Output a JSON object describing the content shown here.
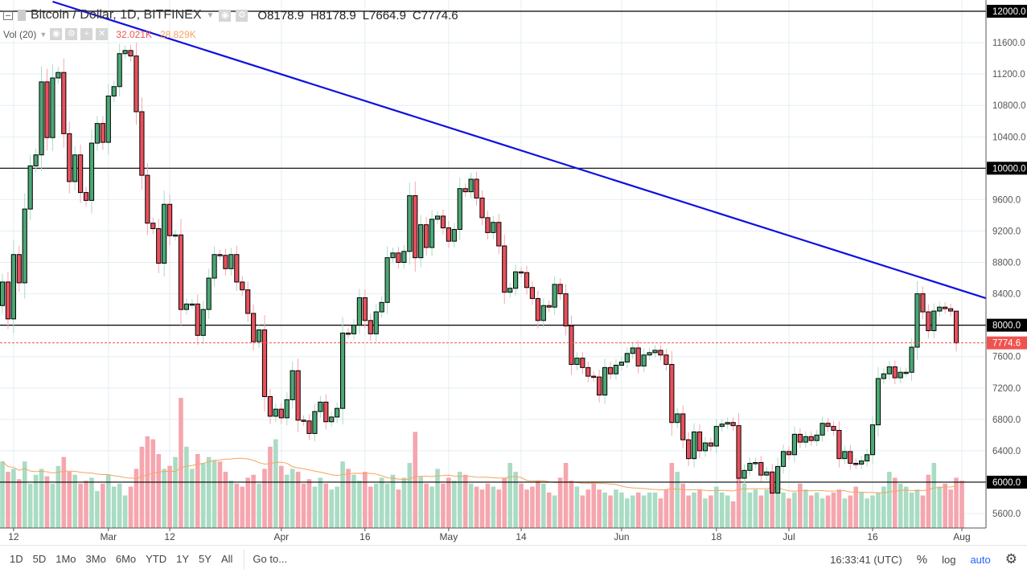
{
  "header": {
    "symbol": "Bitcoin / Dollar, 1D, BITFINEX",
    "open": "O8178.9",
    "high": "H8178.9",
    "low": "L7664.9",
    "close": "C7774.6"
  },
  "volume_legend": {
    "label": "Vol (20)",
    "value": "32.021K",
    "ma": "28.829K"
  },
  "toolbar": {
    "ranges": [
      "1D",
      "5D",
      "1Mo",
      "3Mo",
      "6Mo",
      "YTD",
      "1Y",
      "5Y",
      "All"
    ],
    "goto": "Go to...",
    "time": "16:33:41 (UTC)",
    "percent": "%",
    "log": "log",
    "auto": "auto"
  },
  "colors": {
    "up": "#4aa874",
    "down": "#e8505b",
    "vol_up": "#a9dcc3",
    "vol_down": "#f5a6ae",
    "trendline": "#1010e0",
    "vol_ma": "#f7a35c",
    "grid": "#e4edf3"
  },
  "chart_data": {
    "type": "candlestick",
    "start_date": "2018-02-10",
    "x_ticks": [
      {
        "label": "12",
        "date": "2018-02-12"
      },
      {
        "label": "Mar",
        "date": "2018-03-01"
      },
      {
        "label": "12",
        "date": "2018-03-12"
      },
      {
        "label": "Apr",
        "date": "2018-04-01"
      },
      {
        "label": "16",
        "date": "2018-04-16"
      },
      {
        "label": "May",
        "date": "2018-05-01"
      },
      {
        "label": "14",
        "date": "2018-05-14"
      },
      {
        "label": "Jun",
        "date": "2018-06-01"
      },
      {
        "label": "18",
        "date": "2018-06-18"
      },
      {
        "label": "Jul",
        "date": "2018-07-01"
      },
      {
        "label": "16",
        "date": "2018-07-16"
      },
      {
        "label": "Aug",
        "date": "2018-08-01"
      }
    ],
    "y_ticks": [
      "5600.0",
      "6000.0",
      "6400.0",
      "6800.0",
      "7200.0",
      "7600.0",
      "8000.0",
      "8400.0",
      "8800.0",
      "9200.0",
      "9600.0",
      "10000.0",
      "10400.0",
      "10800.0",
      "11200.0",
      "11600.0",
      "12000.0"
    ],
    "ylim": [
      5440,
      12130
    ],
    "first_open": 8250,
    "closes": [
      8550,
      8080,
      8900,
      8540,
      9480,
      10030,
      10170,
      11100,
      10390,
      11150,
      11220,
      10440,
      9830,
      10170,
      9690,
      9590,
      10320,
      10570,
      10330,
      10920,
      11040,
      11460,
      11500,
      11430,
      10720,
      9910,
      9300,
      9230,
      8790,
      9540,
      9140,
      9150,
      8200,
      8270,
      8270,
      7870,
      8200,
      8600,
      8900,
      8890,
      8720,
      8900,
      8550,
      8450,
      8150,
      7790,
      7940,
      7090,
      6840,
      6930,
      6820,
      7050,
      7420,
      6790,
      6780,
      6620,
      6900,
      7020,
      6770,
      6830,
      6940,
      7900,
      7890,
      8000,
      8350,
      8060,
      7890,
      8170,
      8290,
      8860,
      8920,
      8800,
      8940,
      9650,
      8860,
      9280,
      8990,
      9350,
      9390,
      9240,
      9070,
      9220,
      9740,
      9700,
      9860,
      9620,
      9370,
      9180,
      9310,
      9010,
      8420,
      8470,
      8680,
      8670,
      8480,
      8340,
      8060,
      8250,
      8230,
      8520,
      8400,
      7990,
      7500,
      7580,
      7460,
      7350,
      7340,
      7110,
      7460,
      7380,
      7490,
      7530,
      7640,
      7710,
      7480,
      7620,
      7650,
      7680,
      7620,
      7500,
      6760,
      6870,
      6540,
      6300,
      6640,
      6400,
      6500,
      6460,
      6710,
      6740,
      6760,
      6720,
      6050,
      6150,
      6240,
      6250,
      6090,
      6130,
      5860,
      6200,
      6390,
      6350,
      6610,
      6510,
      6580,
      6530,
      6600,
      6750,
      6710,
      6660,
      6300,
      6390,
      6240,
      6230,
      6270,
      6350,
      6730,
      7320,
      7380,
      7470,
      7330,
      7400,
      7400,
      7720,
      8400,
      8170,
      7930,
      8180,
      8230,
      8210,
      8180,
      7774.6
    ],
    "last_candle": {
      "open": 8178.9,
      "high": 8178.9,
      "low": 7664.9,
      "close": 7774.6
    },
    "volumes_k": [
      45,
      38,
      40,
      33,
      45,
      30,
      36,
      40,
      35,
      30,
      42,
      48,
      38,
      36,
      30,
      32,
      34,
      25,
      30,
      36,
      28,
      30,
      22,
      28,
      40,
      55,
      62,
      60,
      50,
      40,
      42,
      48,
      88,
      55,
      40,
      50,
      44,
      48,
      46,
      45,
      38,
      32,
      30,
      28,
      34,
      36,
      30,
      40,
      55,
      60,
      42,
      36,
      40,
      38,
      30,
      33,
      28,
      34,
      30,
      26,
      28,
      45,
      40,
      36,
      32,
      38,
      28,
      30,
      34,
      30,
      36,
      26,
      34,
      44,
      65,
      35,
      30,
      28,
      40,
      30,
      34,
      32,
      38,
      36,
      30,
      28,
      26,
      30,
      28,
      26,
      34,
      44,
      38,
      30,
      26,
      28,
      32,
      30,
      24,
      22,
      34,
      44,
      32,
      28,
      22,
      26,
      30,
      26,
      24,
      22,
      26,
      24,
      20,
      22,
      24,
      22,
      24,
      24,
      20,
      26,
      44,
      38,
      30,
      22,
      24,
      26,
      20,
      22,
      28,
      24,
      22,
      18,
      40,
      30,
      24,
      26,
      22,
      26,
      30,
      25,
      24,
      20,
      24,
      30,
      26,
      22,
      24,
      20,
      22,
      24,
      26,
      20,
      22,
      28,
      24,
      20,
      22,
      24,
      28,
      38,
      34,
      30,
      28,
      24,
      26,
      22,
      36,
      44,
      28,
      30,
      26,
      34,
      32.021
    ],
    "horizontal_levels": [
      12000,
      10000,
      8000,
      6000
    ],
    "current_price": "7774.6",
    "trendline": [
      {
        "index": 9,
        "price": 12123
      },
      {
        "index": 184,
        "price": 8170
      }
    ]
  }
}
